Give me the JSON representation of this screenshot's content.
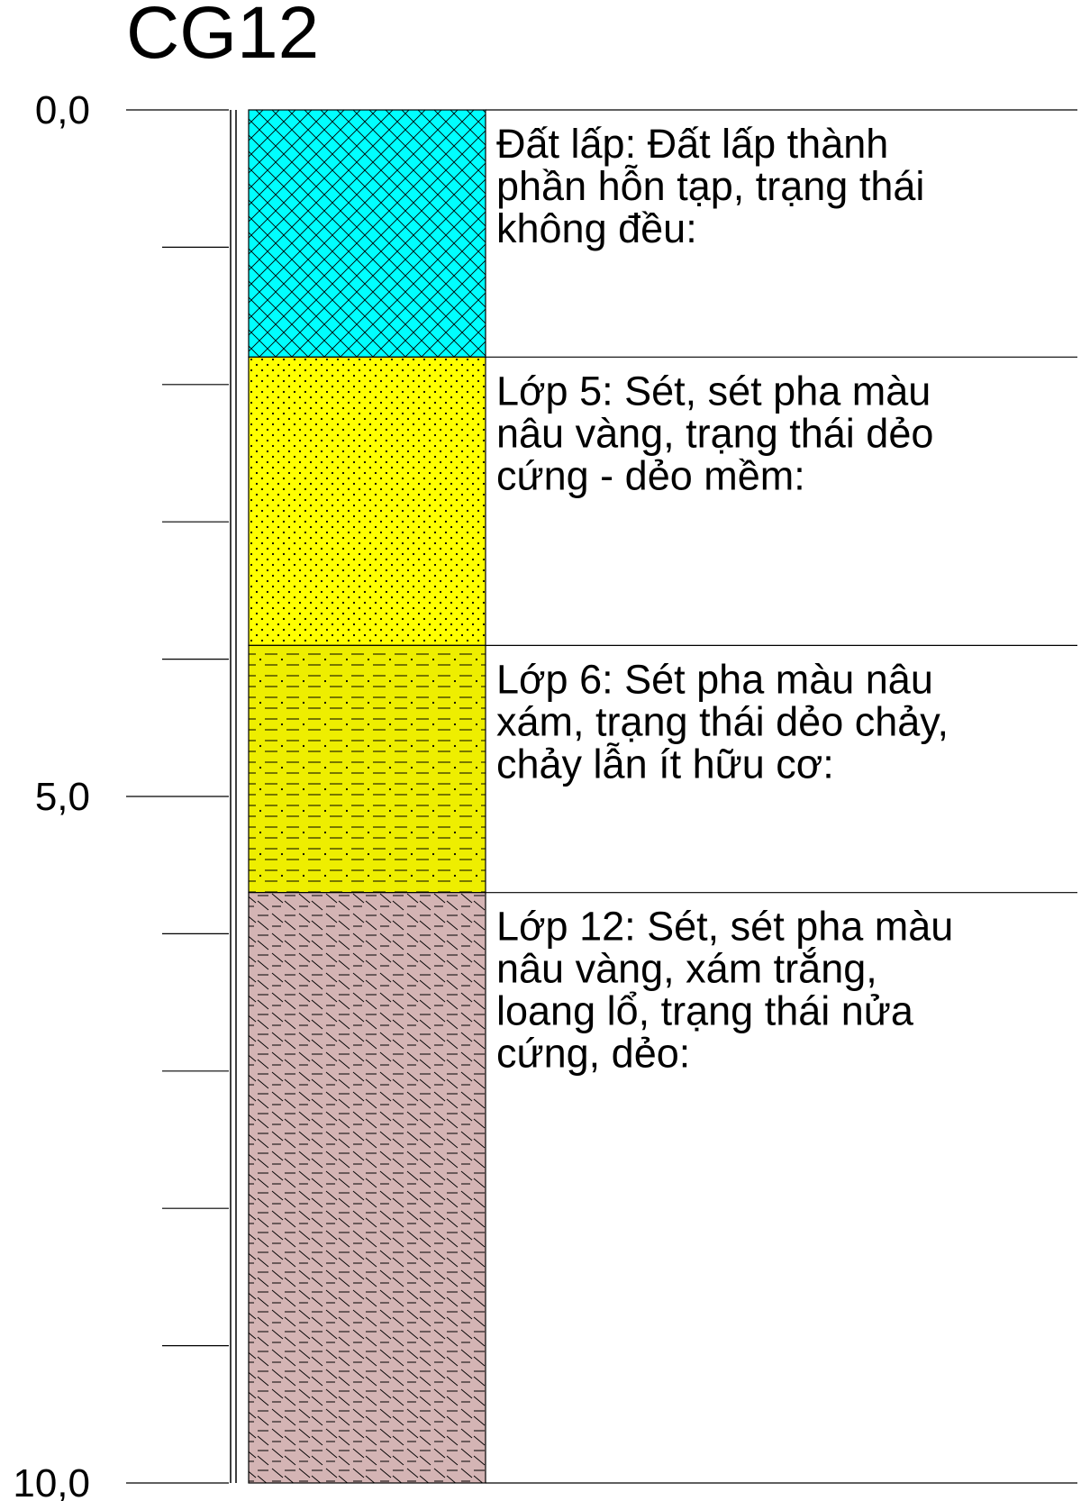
{
  "title": "CG12",
  "depth_axis": {
    "min": 0,
    "max": 10,
    "minor_step": 1,
    "labels": [
      {
        "depth": 0,
        "text": "0,0"
      },
      {
        "depth": 5,
        "text": "5,0"
      },
      {
        "depth": 10,
        "text": "10,0"
      }
    ]
  },
  "layers": [
    {
      "top": 0.0,
      "bottom": 1.8,
      "pattern": "crosshatch-fill",
      "color": "#00ffff",
      "lines": [
        "Đất lấp: Đất lấp thành",
        "phần hỗn tạp, trạng thái",
        "không đều:"
      ]
    },
    {
      "top": 1.8,
      "bottom": 3.9,
      "pattern": "dot-fill",
      "color": "#ffff00",
      "lines": [
        "Lớp 5: Sét, sét pha màu",
        "nâu vàng, trạng thái dẻo",
        "cứng - dẻo mềm:"
      ]
    },
    {
      "top": 3.9,
      "bottom": 5.7,
      "pattern": "dash-dot-fill",
      "color": "#eeee00",
      "lines": [
        "Lớp 6: Sét pha màu nâu",
        "xám, trạng thái dẻo chảy,",
        "chảy lẫn ít hữu cơ:"
      ]
    },
    {
      "top": 5.7,
      "bottom": 10.0,
      "pattern": "slash-dash-fill",
      "color": "#d4b4b4",
      "lines": [
        "Lớp 12: Sét, sét pha màu",
        "nâu vàng, xám trắng,",
        "loang lổ, trạng thái nửa",
        "cứng, dẻo:"
      ]
    }
  ]
}
